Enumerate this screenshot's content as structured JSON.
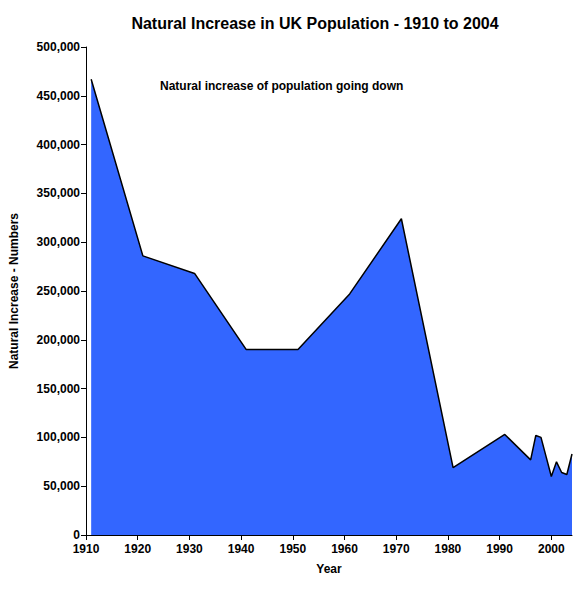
{
  "chart_data": {
    "type": "area",
    "title": "Natural Increase in UK Population - 1910 to 2004",
    "annotation": "Natural increase of population going down",
    "x_label": "Year",
    "y_label": "Natural Increase - Numbers",
    "x": [
      1911,
      1921,
      1931,
      1941,
      1951,
      1961,
      1971,
      1981,
      1991,
      1996,
      1997,
      1998,
      1999,
      2000,
      2001,
      2002,
      2003,
      2004
    ],
    "values": [
      467000,
      286000,
      268000,
      190000,
      190000,
      247000,
      324000,
      69000,
      103000,
      77000,
      102000,
      100000,
      80000,
      60000,
      75000,
      64000,
      62000,
      83000
    ],
    "color": "#3366ff",
    "xlim": [
      1910,
      2004
    ],
    "xticks": [
      1910,
      1920,
      1930,
      1940,
      1950,
      1960,
      1970,
      1980,
      1990,
      2000
    ],
    "ylim": [
      0,
      500000
    ],
    "yticks": [
      0,
      {
        "value": 50000,
        "label": "50,000"
      },
      {
        "value": 100000,
        "label": "100,000"
      },
      {
        "value": 150000,
        "label": "150,000"
      },
      {
        "value": 200000,
        "label": "200,000"
      },
      {
        "value": 250000,
        "label": "250,000"
      },
      {
        "value": 300000,
        "label": "300,000"
      },
      {
        "value": 350000,
        "label": "350,000"
      },
      {
        "value": 400000,
        "label": "400,000"
      },
      {
        "value": 450000,
        "label": "450,000"
      },
      {
        "value": 500000,
        "label": "500,000"
      }
    ],
    "grid": false
  }
}
